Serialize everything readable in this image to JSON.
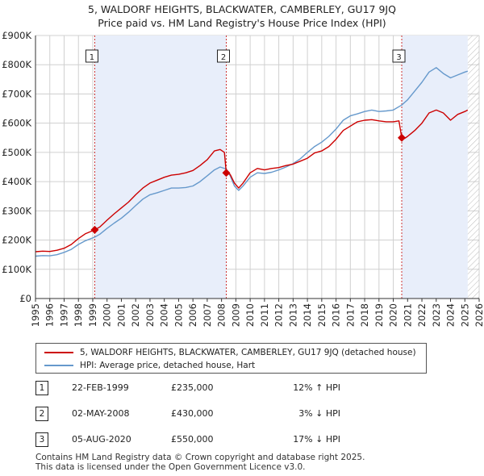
{
  "title_line1": "5, WALDORF HEIGHTS, BLACKWATER, CAMBERLEY, GU17 9JQ",
  "title_line2": "Price paid vs. HM Land Registry's House Price Index (HPI)",
  "legend": {
    "property_label": "5, WALDORF HEIGHTS, BLACKWATER, CAMBERLEY, GU17 9JQ (detached house)",
    "hpi_label": "HPI: Average price, detached house, Hart"
  },
  "sales": [
    {
      "num": "1",
      "date": "22-FEB-1999",
      "price": "£235,000",
      "hpi": "12% ↑ HPI"
    },
    {
      "num": "2",
      "date": "02-MAY-2008",
      "price": "£430,000",
      "hpi": "3% ↓ HPI"
    },
    {
      "num": "3",
      "date": "05-AUG-2020",
      "price": "£550,000",
      "hpi": "17% ↓ HPI"
    }
  ],
  "footer_line1": "Contains HM Land Registry data © Crown copyright and database right 2025.",
  "footer_line2": "This data is licensed under the Open Government Licence v3.0.",
  "colors": {
    "property": "#cc0000",
    "hpi": "#6699cc",
    "shade": "#e8eefa",
    "grid": "#d0d0d0",
    "vline": "#cc3333"
  },
  "chart_data": {
    "type": "line",
    "title": "Price paid vs. HM Land Registry's House Price Index (HPI)",
    "xlabel": "",
    "ylabel": "",
    "xlim": [
      1995,
      2026
    ],
    "ylim": [
      0,
      900000
    ],
    "x_ticks": [
      1995,
      1996,
      1997,
      1998,
      1999,
      2000,
      2001,
      2002,
      2003,
      2004,
      2005,
      2006,
      2007,
      2008,
      2009,
      2010,
      2011,
      2012,
      2013,
      2014,
      2015,
      2016,
      2017,
      2018,
      2019,
      2020,
      2021,
      2022,
      2023,
      2024,
      2025,
      2026
    ],
    "y_ticks": [
      {
        "value": 0,
        "label": "£0"
      },
      {
        "value": 100000,
        "label": "£100K"
      },
      {
        "value": 200000,
        "label": "£200K"
      },
      {
        "value": 300000,
        "label": "£300K"
      },
      {
        "value": 400000,
        "label": "£400K"
      },
      {
        "value": 500000,
        "label": "£500K"
      },
      {
        "value": 600000,
        "label": "£600K"
      },
      {
        "value": 700000,
        "label": "£700K"
      },
      {
        "value": 800000,
        "label": "£800K"
      },
      {
        "value": 900000,
        "label": "£900K"
      }
    ],
    "shaded_ranges": [
      [
        1999.14,
        2008.33
      ],
      [
        2020.59,
        2025.2
      ]
    ],
    "hatch_from": 2025.2,
    "series": [
      {
        "name": "5, WALDORF HEIGHTS, BLACKWATER, CAMBERLEY, GU17 9JQ (detached house)",
        "color": "#cc0000",
        "points": [
          [
            1995.0,
            160000
          ],
          [
            1995.5,
            162000
          ],
          [
            1996.0,
            161000
          ],
          [
            1996.5,
            165000
          ],
          [
            1997.0,
            172000
          ],
          [
            1997.5,
            185000
          ],
          [
            1998.0,
            205000
          ],
          [
            1998.5,
            222000
          ],
          [
            1999.14,
            235000
          ],
          [
            1999.5,
            245000
          ],
          [
            2000.0,
            268000
          ],
          [
            2000.5,
            290000
          ],
          [
            2001.0,
            310000
          ],
          [
            2001.5,
            330000
          ],
          [
            2002.0,
            355000
          ],
          [
            2002.5,
            378000
          ],
          [
            2003.0,
            395000
          ],
          [
            2003.5,
            405000
          ],
          [
            2004.0,
            415000
          ],
          [
            2004.5,
            422000
          ],
          [
            2005.0,
            425000
          ],
          [
            2005.5,
            430000
          ],
          [
            2006.0,
            438000
          ],
          [
            2006.5,
            455000
          ],
          [
            2007.0,
            475000
          ],
          [
            2007.5,
            505000
          ],
          [
            2007.9,
            510000
          ],
          [
            2008.2,
            500000
          ],
          [
            2008.33,
            430000
          ],
          [
            2008.6,
            425000
          ],
          [
            2008.9,
            395000
          ],
          [
            2009.2,
            378000
          ],
          [
            2009.5,
            395000
          ],
          [
            2010.0,
            430000
          ],
          [
            2010.5,
            445000
          ],
          [
            2011.0,
            440000
          ],
          [
            2011.5,
            445000
          ],
          [
            2012.0,
            448000
          ],
          [
            2012.5,
            455000
          ],
          [
            2013.0,
            460000
          ],
          [
            2013.5,
            470000
          ],
          [
            2014.0,
            480000
          ],
          [
            2014.5,
            498000
          ],
          [
            2015.0,
            505000
          ],
          [
            2015.5,
            520000
          ],
          [
            2016.0,
            545000
          ],
          [
            2016.5,
            575000
          ],
          [
            2017.0,
            590000
          ],
          [
            2017.5,
            605000
          ],
          [
            2018.0,
            610000
          ],
          [
            2018.5,
            612000
          ],
          [
            2019.0,
            608000
          ],
          [
            2019.5,
            605000
          ],
          [
            2020.0,
            605000
          ],
          [
            2020.4,
            608000
          ],
          [
            2020.59,
            550000
          ],
          [
            2020.8,
            548000
          ],
          [
            2021.0,
            555000
          ],
          [
            2021.5,
            575000
          ],
          [
            2022.0,
            600000
          ],
          [
            2022.5,
            635000
          ],
          [
            2023.0,
            645000
          ],
          [
            2023.5,
            635000
          ],
          [
            2024.0,
            610000
          ],
          [
            2024.5,
            630000
          ],
          [
            2025.0,
            640000
          ],
          [
            2025.2,
            645000
          ]
        ]
      },
      {
        "name": "HPI: Average price, detached house, Hart",
        "color": "#6699cc",
        "points": [
          [
            1995.0,
            145000
          ],
          [
            1995.5,
            147000
          ],
          [
            1996.0,
            146000
          ],
          [
            1996.5,
            150000
          ],
          [
            1997.0,
            158000
          ],
          [
            1997.5,
            168000
          ],
          [
            1998.0,
            185000
          ],
          [
            1998.5,
            198000
          ],
          [
            1999.14,
            210000
          ],
          [
            1999.5,
            220000
          ],
          [
            2000.0,
            240000
          ],
          [
            2000.5,
            258000
          ],
          [
            2001.0,
            275000
          ],
          [
            2001.5,
            295000
          ],
          [
            2002.0,
            318000
          ],
          [
            2002.5,
            340000
          ],
          [
            2003.0,
            355000
          ],
          [
            2003.5,
            362000
          ],
          [
            2004.0,
            370000
          ],
          [
            2004.5,
            378000
          ],
          [
            2005.0,
            378000
          ],
          [
            2005.5,
            380000
          ],
          [
            2006.0,
            385000
          ],
          [
            2006.5,
            400000
          ],
          [
            2007.0,
            420000
          ],
          [
            2007.5,
            440000
          ],
          [
            2007.9,
            450000
          ],
          [
            2008.33,
            443000
          ],
          [
            2008.6,
            420000
          ],
          [
            2008.9,
            385000
          ],
          [
            2009.2,
            370000
          ],
          [
            2009.5,
            385000
          ],
          [
            2010.0,
            415000
          ],
          [
            2010.5,
            430000
          ],
          [
            2011.0,
            428000
          ],
          [
            2011.5,
            432000
          ],
          [
            2012.0,
            440000
          ],
          [
            2012.5,
            450000
          ],
          [
            2013.0,
            462000
          ],
          [
            2013.5,
            478000
          ],
          [
            2014.0,
            500000
          ],
          [
            2014.5,
            520000
          ],
          [
            2015.0,
            535000
          ],
          [
            2015.5,
            555000
          ],
          [
            2016.0,
            580000
          ],
          [
            2016.5,
            610000
          ],
          [
            2017.0,
            625000
          ],
          [
            2017.5,
            632000
          ],
          [
            2018.0,
            640000
          ],
          [
            2018.5,
            645000
          ],
          [
            2019.0,
            640000
          ],
          [
            2019.5,
            642000
          ],
          [
            2020.0,
            645000
          ],
          [
            2020.59,
            662000
          ],
          [
            2021.0,
            680000
          ],
          [
            2021.5,
            710000
          ],
          [
            2022.0,
            740000
          ],
          [
            2022.5,
            775000
          ],
          [
            2023.0,
            790000
          ],
          [
            2023.5,
            770000
          ],
          [
            2024.0,
            755000
          ],
          [
            2024.5,
            765000
          ],
          [
            2025.0,
            775000
          ],
          [
            2025.2,
            778000
          ]
        ]
      }
    ],
    "markers": [
      {
        "label": "1",
        "x": 1999.14,
        "y": 235000
      },
      {
        "label": "2",
        "x": 2008.33,
        "y": 430000
      },
      {
        "label": "3",
        "x": 2020.59,
        "y": 550000
      }
    ]
  }
}
